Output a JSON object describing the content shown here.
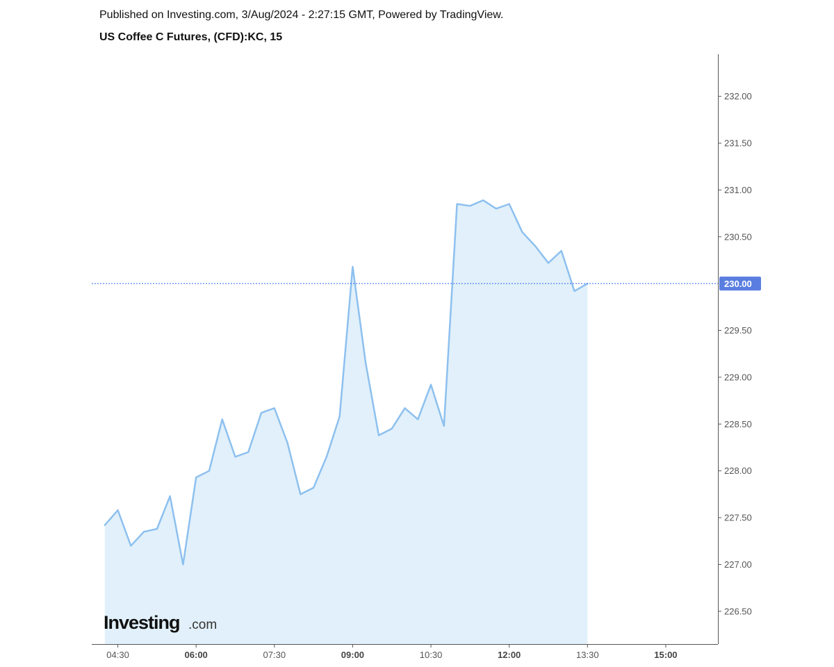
{
  "header": {
    "published_line": "Published on Investing.com, 3/Aug/2024 - 2:27:15 GMT, Powered by TradingView.",
    "symbol_line": "US Coffee C Futures, (CFD):KC, 15"
  },
  "logo": {
    "main": "Investing",
    "suffix": ".com"
  },
  "chart_data": {
    "type": "area",
    "title": "US Coffee C Futures, (CFD):KC, 15",
    "xlabel": "",
    "ylabel": "",
    "interval_minutes": 15,
    "x": [
      "04:15",
      "04:30",
      "04:45",
      "05:00",
      "05:15",
      "05:30",
      "05:45",
      "06:00",
      "06:15",
      "06:30",
      "06:45",
      "07:00",
      "07:15",
      "07:30",
      "07:45",
      "08:00",
      "08:15",
      "08:30",
      "08:45",
      "09:00",
      "09:15",
      "09:30",
      "09:45",
      "10:00",
      "10:15",
      "10:30",
      "10:45",
      "11:00",
      "11:15",
      "11:30",
      "11:45",
      "12:00",
      "12:15",
      "12:30",
      "12:45",
      "13:00",
      "13:15",
      "13:30"
    ],
    "values": [
      227.42,
      227.58,
      227.2,
      227.35,
      227.38,
      227.73,
      227.0,
      227.93,
      228.0,
      228.55,
      228.15,
      228.2,
      228.62,
      228.67,
      228.3,
      227.75,
      227.82,
      228.15,
      228.58,
      230.18,
      229.15,
      228.38,
      228.45,
      228.67,
      228.55,
      228.92,
      228.48,
      230.85,
      230.83,
      230.89,
      230.8,
      230.85,
      230.55,
      230.4,
      230.22,
      230.35,
      229.92,
      230.0
    ],
    "last_value_label": "230.00",
    "last_value": 230.0,
    "y_ticks": [
      "226.50",
      "227.00",
      "227.50",
      "228.00",
      "228.50",
      "229.00",
      "229.50",
      "230.50",
      "231.00",
      "231.50",
      "232.00"
    ],
    "y_tick_values": [
      226.5,
      227.0,
      227.5,
      228.0,
      228.5,
      229.0,
      229.5,
      230.5,
      231.0,
      231.5,
      232.0
    ],
    "x_ticks": [
      {
        "label": "04:30",
        "time": "04:30",
        "bold": false
      },
      {
        "label": "06:00",
        "time": "06:00",
        "bold": true
      },
      {
        "label": "07:30",
        "time": "07:30",
        "bold": false
      },
      {
        "label": "09:00",
        "time": "09:00",
        "bold": true
      },
      {
        "label": "10:30",
        "time": "10:30",
        "bold": false
      },
      {
        "label": "12:00",
        "time": "12:00",
        "bold": true
      },
      {
        "label": "13:30",
        "time": "13:30",
        "bold": false
      },
      {
        "label": "15:00",
        "time": "15:00",
        "bold": true
      }
    ],
    "ylim": [
      226.15,
      232.45
    ],
    "xlim": [
      "04:00",
      "16:00"
    ],
    "grid": false,
    "legend": "none",
    "colors": {
      "line": "#8dc0ef",
      "fill": "#e1f0fa",
      "last_line": "#2e67f8",
      "last_label_bg": "#5a7ee0",
      "axis": "#555555"
    }
  }
}
